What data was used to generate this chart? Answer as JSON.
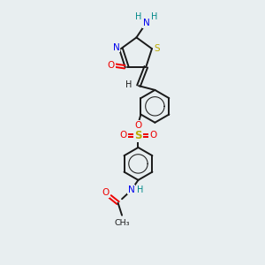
{
  "bg_color": "#e8eef0",
  "bond_color": "#1a1a1a",
  "n_color": "#0000ee",
  "o_color": "#ee0000",
  "s_color": "#bbaa00",
  "h_color": "#008888",
  "figsize": [
    3.0,
    3.0
  ],
  "dpi": 100,
  "xlim": [
    0,
    10
  ],
  "ylim": [
    0,
    10
  ]
}
